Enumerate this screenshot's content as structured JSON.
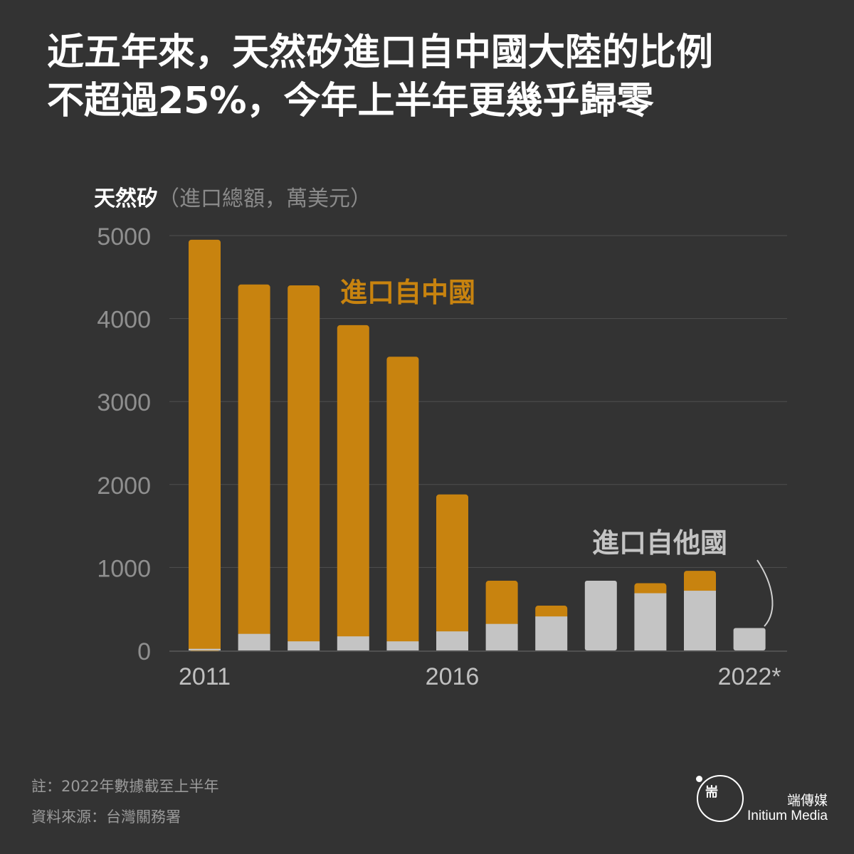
{
  "headline": {
    "line1": "近五年來，天然矽進口自中國大陸的比例",
    "line2": "不超過25%，今年上半年更幾乎歸零"
  },
  "chart_label": {
    "main": "天然矽",
    "paren": "（進口總額，萬美元）"
  },
  "chart_data": {
    "type": "bar",
    "stacked": true,
    "ylim": [
      0,
      5000
    ],
    "yticks": [
      "0",
      "1000",
      "2000",
      "3000",
      "4000",
      "5000"
    ],
    "ytick_values": [
      0,
      1000,
      2000,
      3000,
      4000,
      5000
    ],
    "categories": [
      "2011",
      "2012",
      "2013",
      "2014",
      "2015",
      "2016",
      "2017",
      "2018",
      "2019",
      "2020",
      "2021",
      "2022*"
    ],
    "xtick_labels": {
      "0": "2011",
      "5": "2016",
      "11": "2022*"
    },
    "grid": true,
    "series": [
      {
        "name": "進口自他國",
        "color": "#c4c4c4",
        "values": [
          20,
          200,
          110,
          170,
          110,
          230,
          320,
          410,
          840,
          690,
          720,
          270
        ]
      },
      {
        "name": "進口自中國",
        "color": "#c8830f",
        "values": [
          4930,
          4210,
          4290,
          3750,
          3430,
          1650,
          520,
          130,
          0,
          120,
          240,
          0
        ]
      }
    ]
  },
  "footer": {
    "note": "註：2022年數據截至上半年",
    "source": "資料來源：台灣關務署"
  },
  "brand": {
    "name_cn": "端傳媒",
    "name_en": "Initium Media",
    "logo_glyph": "耑"
  },
  "colors": {
    "background": "#333333",
    "china": "#c8830f",
    "other": "#c4c4c4",
    "grid": "#4f4f4f",
    "tick": "#8f8f8f"
  }
}
